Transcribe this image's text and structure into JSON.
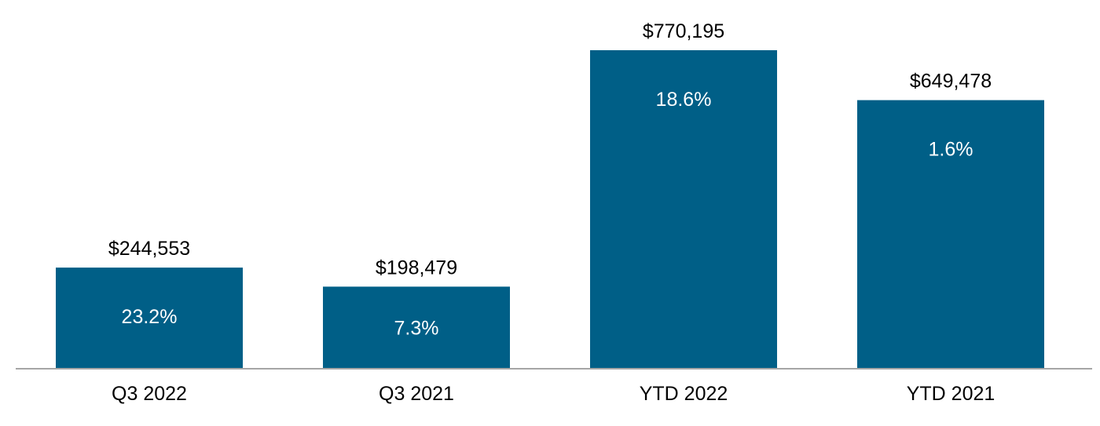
{
  "chart_data": {
    "type": "bar",
    "title": "",
    "xlabel": "",
    "ylabel": "",
    "categories": [
      "Q3 2022",
      "Q3 2021",
      "YTD 2022",
      "YTD 2021"
    ],
    "values": [
      244553,
      198479,
      770195,
      649478
    ],
    "value_labels": [
      "$244,553",
      "$198,479",
      "$770,195",
      "$649,478"
    ],
    "inner_labels": [
      "23.2%",
      "7.3%",
      "18.6%",
      "1.6%"
    ],
    "ylim": [
      0,
      770195
    ],
    "grid": false,
    "legend": "none",
    "colors": {
      "bar": "#005f87",
      "axis": "#a6a6a6",
      "text": "#000000",
      "inner_text": "#ffffff"
    }
  }
}
